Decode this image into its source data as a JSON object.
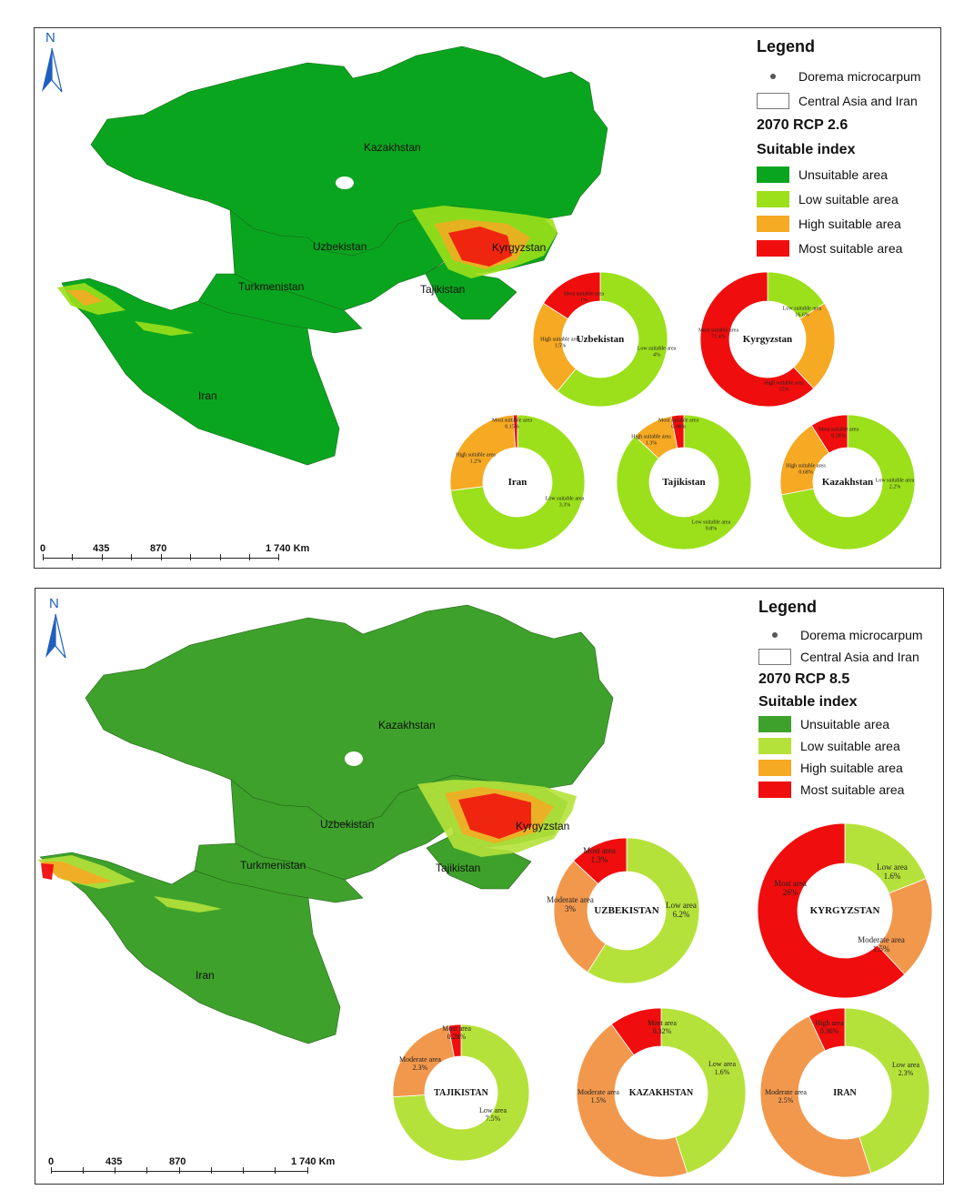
{
  "colors": {
    "unsuitable_top": "#0aa51f",
    "unsuitable_bottom": "#3ea12b",
    "low": "#9be01a",
    "low_bottom": "#b5e23a",
    "high": "#f6a923",
    "high_bottom": "#f2984d",
    "most": "#f00d0d",
    "north_arrow": "#1f5fbf"
  },
  "top": {
    "legend": {
      "title": "Legend",
      "species": "Dorema microcarpum",
      "region": "Central Asia and Iran",
      "scenario": "2070 RCP 2.6",
      "index_title": "Suitable index",
      "classes": [
        "Unsuitable area",
        "Low suitable area",
        "High suitable area",
        "Most suitable area"
      ]
    },
    "north": "N",
    "scale": {
      "labels": [
        "0",
        "435",
        "870",
        "1 740 Km"
      ]
    },
    "countries": [
      "Kazakhstan",
      "Uzbekistan",
      "Kyrgyzstan",
      "Turkmenistan",
      "Tajikistan",
      "Iran"
    ],
    "donuts": [
      {
        "name": "Uzbekistan",
        "segments": [
          {
            "label": "Low suitable area",
            "value": "4%",
            "pct": 61,
            "color": "low"
          },
          {
            "label": "High suitable area",
            "value": "1.5%",
            "pct": 23,
            "color": "high"
          },
          {
            "label": "Most suitable area",
            "value": "1%",
            "pct": 16,
            "color": "most"
          }
        ]
      },
      {
        "name": "Kyrgyzstan",
        "segments": [
          {
            "label": "Low suitable area",
            "value": "16.6%",
            "pct": 16,
            "color": "low"
          },
          {
            "label": "High suitable area",
            "value": "15%",
            "pct": 22,
            "color": "high"
          },
          {
            "label": "Most suitable area",
            "value": "71.4%",
            "pct": 62,
            "color": "most"
          }
        ]
      },
      {
        "name": "Iran",
        "segments": [
          {
            "label": "Low suitable area",
            "value": "3.3%",
            "pct": 73,
            "color": "low"
          },
          {
            "label": "High suitable area",
            "value": "1.2%",
            "pct": 26,
            "color": "high"
          },
          {
            "label": "Most suitable area",
            "value": "0.15%",
            "pct": 1,
            "color": "most"
          }
        ]
      },
      {
        "name": "Tajikistan",
        "segments": [
          {
            "label": "Low suitable area",
            "value": "9.8%",
            "pct": 87,
            "color": "low"
          },
          {
            "label": "High suitable area",
            "value": "1.3%",
            "pct": 10,
            "color": "high"
          },
          {
            "label": "Most suitable area",
            "value": "0.08%",
            "pct": 3,
            "color": "most"
          }
        ]
      },
      {
        "name": "Kazakhstan",
        "segments": [
          {
            "label": "Low suitable area",
            "value": "2.2%",
            "pct": 72,
            "color": "low"
          },
          {
            "label": "High suitable area",
            "value": "0.68%",
            "pct": 19,
            "color": "high"
          },
          {
            "label": "Most suitable area",
            "value": "0.28%",
            "pct": 9,
            "color": "most"
          }
        ]
      }
    ]
  },
  "bottom": {
    "legend": {
      "title": "Legend",
      "species": "Dorema microcarpum",
      "region": "Central Asia and Iran",
      "scenario": "2070 RCP 8.5",
      "index_title": "Suitable index",
      "classes": [
        "Unsuitable area",
        "Low suitable area",
        "High suitable area",
        "Most suitable area"
      ]
    },
    "north": "N",
    "scale": {
      "labels": [
        "0",
        "435",
        "870",
        "1 740 Km"
      ]
    },
    "countries": [
      "Kazakhstan",
      "Uzbekistan",
      "Kyrgyzstan",
      "Turkmenistan",
      "Tajikistan",
      "Iran"
    ],
    "donuts": [
      {
        "name": "UZBEKISTAN",
        "segments": [
          {
            "label": "Low area",
            "value": "6.2%",
            "pct": 59,
            "color": "low_bottom"
          },
          {
            "label": "Moderate area",
            "value": "3%",
            "pct": 28,
            "color": "high_bottom"
          },
          {
            "label": "Most area",
            "value": "1.3%",
            "pct": 13,
            "color": "most"
          }
        ]
      },
      {
        "name": "KYRGYZSTAN",
        "segments": [
          {
            "label": "Low area",
            "value": "1.6%",
            "pct": 19,
            "color": "low_bottom"
          },
          {
            "label": "Moderate area",
            "value": "1.5%",
            "pct": 19,
            "color": "high_bottom"
          },
          {
            "label": "Most area",
            "value": "26%",
            "pct": 62,
            "color": "most"
          }
        ]
      },
      {
        "name": "TAJIKISTAN",
        "segments": [
          {
            "label": "Low area",
            "value": "7.5%",
            "pct": 74,
            "color": "low_bottom"
          },
          {
            "label": "Moderate area",
            "value": "2.3%",
            "pct": 23,
            "color": "high_bottom"
          },
          {
            "label": "Most area",
            "value": "0.28%",
            "pct": 3,
            "color": "most"
          }
        ]
      },
      {
        "name": "KAZAKHSTAN",
        "segments": [
          {
            "label": "Low area",
            "value": "1.6%",
            "pct": 45,
            "color": "low_bottom"
          },
          {
            "label": "Moderate area",
            "value": "1.5%",
            "pct": 45,
            "color": "high_bottom"
          },
          {
            "label": "Most area",
            "value": "0.32%",
            "pct": 10,
            "color": "most"
          }
        ]
      },
      {
        "name": "IRAN",
        "segments": [
          {
            "label": "Low area",
            "value": "2.3%",
            "pct": 45,
            "color": "low_bottom"
          },
          {
            "label": "Moderate area",
            "value": "2.5%",
            "pct": 48,
            "color": "high_bottom"
          },
          {
            "label": "High area",
            "value": "0.36%",
            "pct": 7,
            "color": "most"
          }
        ]
      }
    ]
  }
}
